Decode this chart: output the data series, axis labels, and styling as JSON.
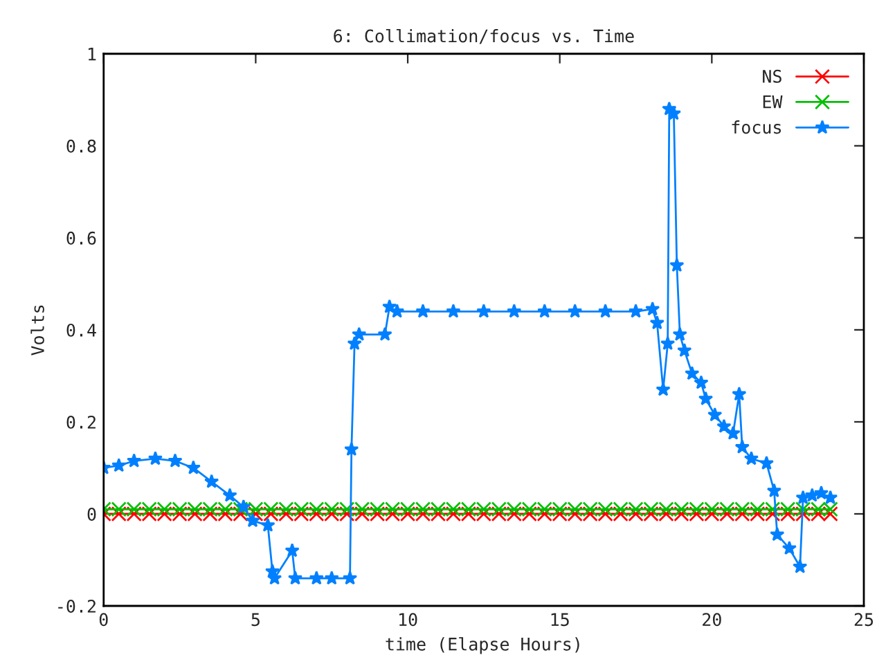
{
  "chart_data": {
    "type": "line",
    "title": "6: Collimation/focus vs. Time",
    "xlabel": "time (Elapse Hours)",
    "ylabel": "Volts",
    "xlim": [
      0,
      25
    ],
    "xticks": [
      0,
      5,
      10,
      15,
      20,
      25
    ],
    "ylim": [
      -0.2,
      1
    ],
    "yticks": [
      -0.2,
      0,
      0.2,
      0.4,
      0.6,
      0.8,
      1
    ],
    "grid": false,
    "legend": "top right",
    "series": [
      {
        "name": "NS",
        "color": "#ff0000",
        "marker": "cross",
        "x": [
          0,
          0.5,
          1,
          1.5,
          2,
          2.5,
          3,
          3.5,
          4,
          4.5,
          5,
          5.5,
          6,
          6.5,
          7,
          7.5,
          8,
          8.5,
          9,
          9.5,
          10,
          10.5,
          11,
          11.5,
          12,
          12.5,
          13,
          13.5,
          14,
          14.5,
          15,
          15.5,
          16,
          16.5,
          17,
          17.5,
          18,
          18.5,
          19,
          19.5,
          20,
          20.5,
          21,
          21.5,
          22,
          22.5,
          23,
          23.5,
          23.9
        ],
        "values": [
          0,
          0,
          0,
          0,
          0,
          0,
          0,
          0,
          0,
          0,
          0,
          0,
          0,
          0,
          0,
          0,
          0,
          0,
          0,
          0,
          0,
          0,
          0,
          0,
          0,
          0,
          0,
          0,
          0,
          0,
          0,
          0,
          0,
          0,
          0,
          0,
          0,
          0,
          0,
          0,
          0,
          0,
          0,
          0,
          0,
          0,
          0,
          0,
          0
        ]
      },
      {
        "name": "EW",
        "color": "#00c000",
        "marker": "cross",
        "x": [
          0,
          0.5,
          1,
          1.5,
          2,
          2.5,
          3,
          3.5,
          4,
          4.5,
          5,
          5.5,
          6,
          6.5,
          7,
          7.5,
          8,
          8.5,
          9,
          9.5,
          10,
          10.5,
          11,
          11.5,
          12,
          12.5,
          13,
          13.5,
          14,
          14.5,
          15,
          15.5,
          16,
          16.5,
          17,
          17.5,
          18,
          18.5,
          19,
          19.5,
          20,
          20.5,
          21,
          21.5,
          22,
          22.5,
          23,
          23.5,
          23.9
        ],
        "values": [
          0.01,
          0.01,
          0.01,
          0.01,
          0.01,
          0.01,
          0.01,
          0.01,
          0.01,
          0.01,
          0.01,
          0.01,
          0.01,
          0.01,
          0.01,
          0.01,
          0.01,
          0.01,
          0.01,
          0.01,
          0.01,
          0.01,
          0.01,
          0.01,
          0.01,
          0.01,
          0.01,
          0.01,
          0.01,
          0.01,
          0.01,
          0.01,
          0.01,
          0.01,
          0.01,
          0.01,
          0.01,
          0.01,
          0.01,
          0.01,
          0.01,
          0.01,
          0.01,
          0.01,
          0.01,
          0.01,
          0.01,
          0.01,
          0.01
        ]
      },
      {
        "name": "focus",
        "color": "#0080ff",
        "marker": "star",
        "x": [
          0,
          0.5,
          1,
          1.7,
          2.35,
          2.95,
          3.55,
          4.15,
          4.6,
          4.9,
          5.4,
          5.55,
          5.62,
          6.2,
          6.3,
          7,
          7.5,
          8.1,
          8.15,
          8.25,
          8.4,
          9.25,
          9.4,
          9.65,
          10.5,
          11.5,
          12.5,
          13.5,
          14.5,
          15.5,
          16.5,
          17.5,
          18.05,
          18.2,
          18.4,
          18.55,
          18.6,
          18.75,
          18.85,
          18.95,
          19.1,
          19.35,
          19.65,
          19.8,
          20.1,
          20.4,
          20.7,
          20.9,
          21.0,
          21.3,
          21.8,
          22.05,
          22.15,
          22.55,
          22.9,
          23.0,
          23.3,
          23.6,
          23.9
        ],
        "values": [
          0.1,
          0.105,
          0.115,
          0.12,
          0.115,
          0.1,
          0.07,
          0.04,
          0.015,
          -0.015,
          -0.025,
          -0.125,
          -0.14,
          -0.08,
          -0.14,
          -0.14,
          -0.14,
          -0.14,
          0.14,
          0.37,
          0.39,
          0.39,
          0.45,
          0.44,
          0.44,
          0.44,
          0.44,
          0.44,
          0.44,
          0.44,
          0.44,
          0.44,
          0.445,
          0.415,
          0.27,
          0.37,
          0.88,
          0.87,
          0.54,
          0.39,
          0.355,
          0.305,
          0.285,
          0.25,
          0.215,
          0.19,
          0.175,
          0.26,
          0.145,
          0.12,
          0.11,
          0.05,
          -0.045,
          -0.075,
          -0.115,
          0.035,
          0.04,
          0.045,
          0.035
        ]
      }
    ]
  }
}
